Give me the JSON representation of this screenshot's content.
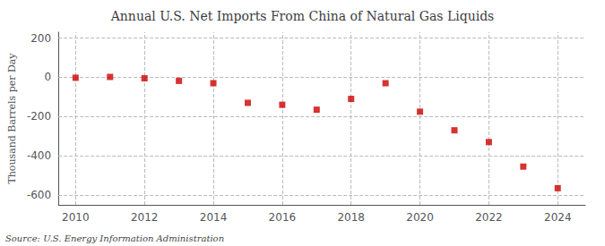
{
  "chart_data": {
    "type": "scatter",
    "title": "Annual U.S. Net Imports From China of Natural Gas Liquids",
    "ylabel": "Thousand Barrels per Day",
    "annotations": [
      "Source: U.S. Energy Information Administration"
    ],
    "x": [
      2010,
      2011,
      2012,
      2013,
      2014,
      2015,
      2016,
      2017,
      2018,
      2019,
      2020,
      2021,
      2022,
      2023,
      2024
    ],
    "values": [
      -2,
      2,
      -5,
      -18,
      -30,
      -130,
      -140,
      -165,
      -110,
      -30,
      -175,
      -270,
      -330,
      -455,
      -565
    ],
    "color": "#cc0000",
    "marker": "square",
    "xlim": [
      2009.5,
      2024.8
    ],
    "xticks": [
      2010,
      2012,
      2014,
      2016,
      2018,
      2020,
      2022,
      2024
    ],
    "ylim": [
      -650,
      230
    ],
    "yticks": [
      -600,
      -400,
      -200,
      0,
      200
    ],
    "grid": true
  }
}
